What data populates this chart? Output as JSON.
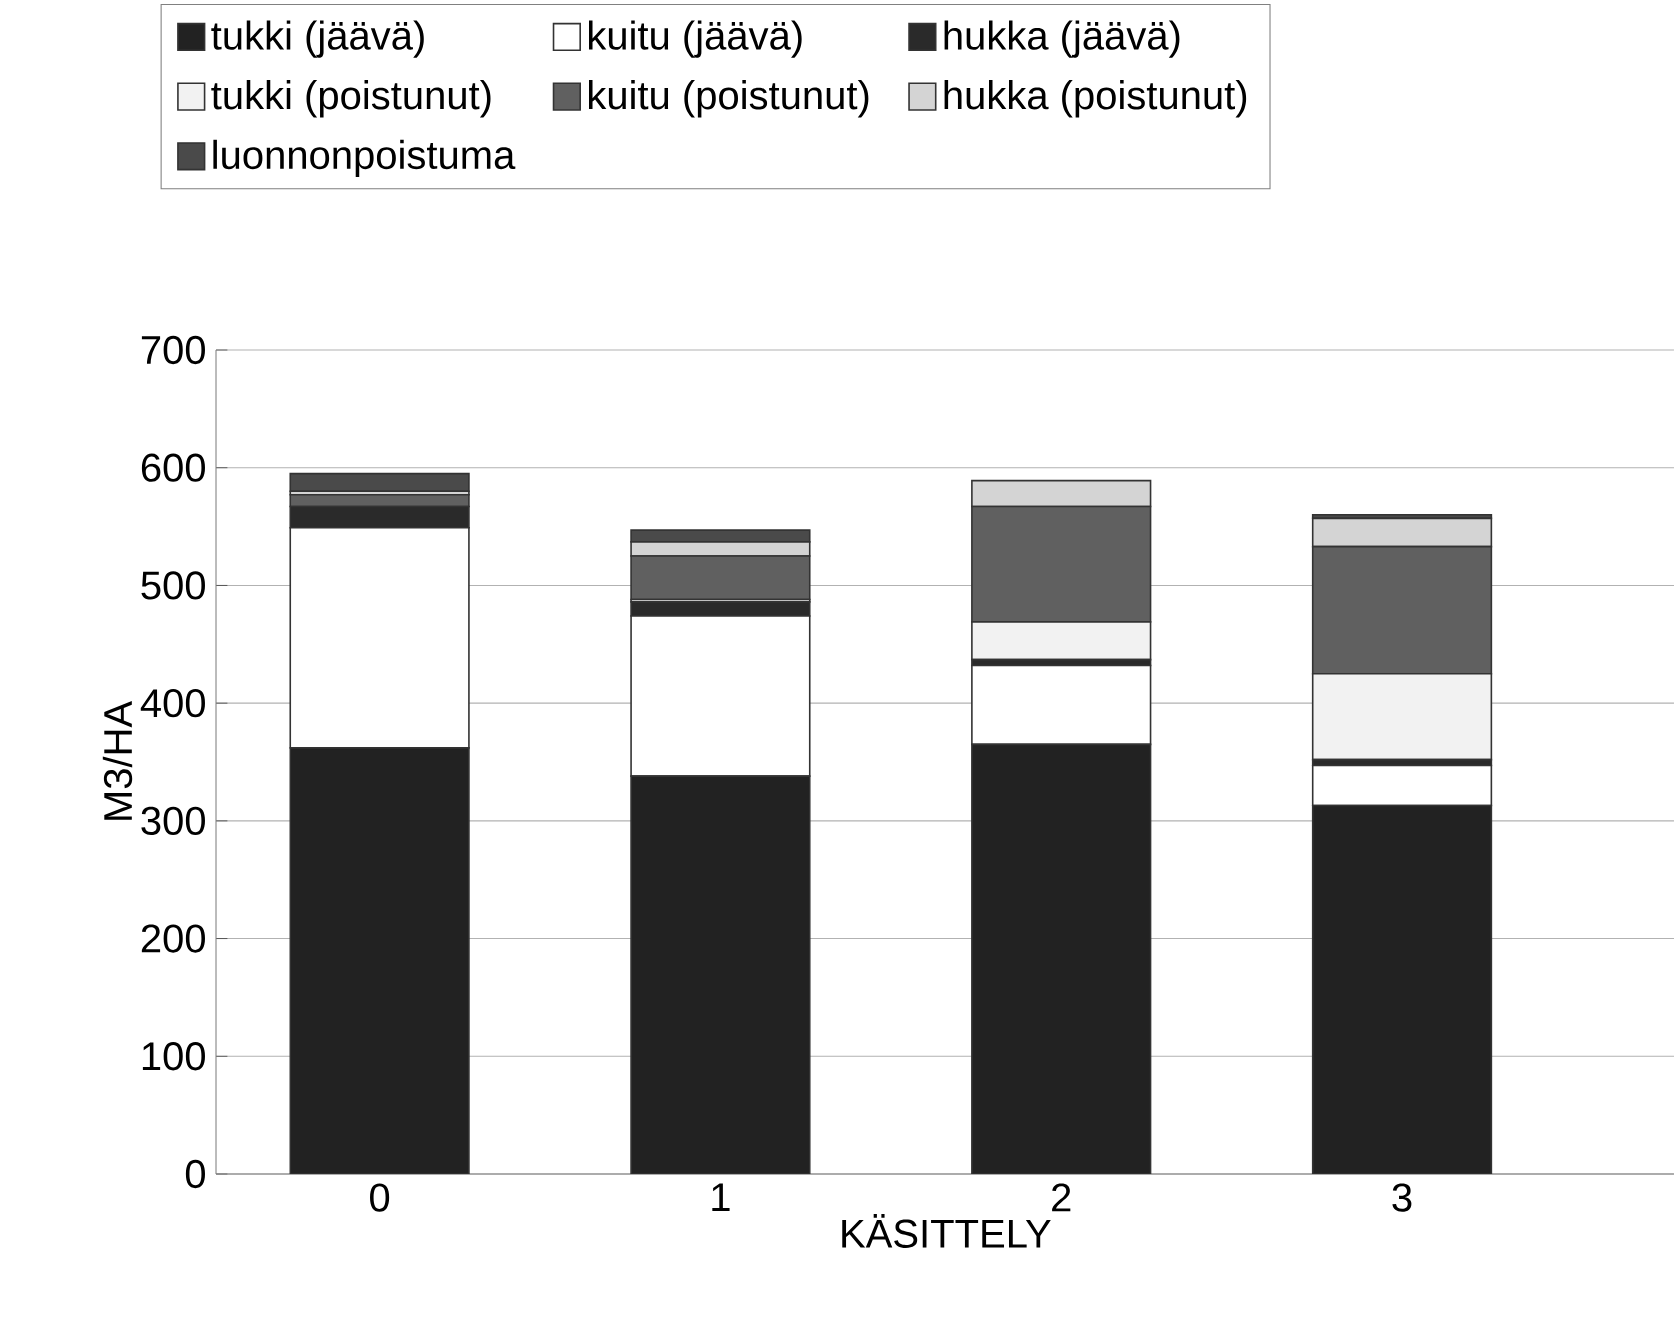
{
  "chart_data": {
    "type": "bar",
    "stacked": true,
    "xlabel": "KÄSITTELY",
    "ylabel": "M3/HA",
    "categories": [
      "0",
      "1",
      "2",
      "3"
    ],
    "series": [
      {
        "name": "tukki (jäävä)",
        "color": "#222222",
        "values": [
          362,
          338,
          365,
          313
        ]
      },
      {
        "name": "kuitu (jäävä)",
        "color": "#ffffff",
        "values": [
          187,
          136,
          67,
          34
        ]
      },
      {
        "name": "hukka (jäävä)",
        "color": "#2a2a2a",
        "values": [
          18,
          12,
          5,
          5
        ]
      },
      {
        "name": "tukki (poistunut)",
        "color": "#f2f2f2",
        "values": [
          null,
          2,
          32,
          73
        ]
      },
      {
        "name": "kuitu (poistunut)",
        "color": "#606060",
        "values": [
          10,
          37,
          98,
          108
        ]
      },
      {
        "name": "hukka (poistunut)",
        "color": "#d4d4d4",
        "values": [
          3,
          12,
          22,
          24
        ]
      },
      {
        "name": "luonnonpoistuma",
        "color": "#4a4a4a",
        "values": [
          15,
          10,
          0,
          3
        ]
      }
    ],
    "ylim": [
      0,
      700
    ],
    "yticks": [
      0,
      100,
      200,
      300,
      400,
      500,
      600,
      700
    ],
    "grid": "y",
    "legend": "top"
  }
}
